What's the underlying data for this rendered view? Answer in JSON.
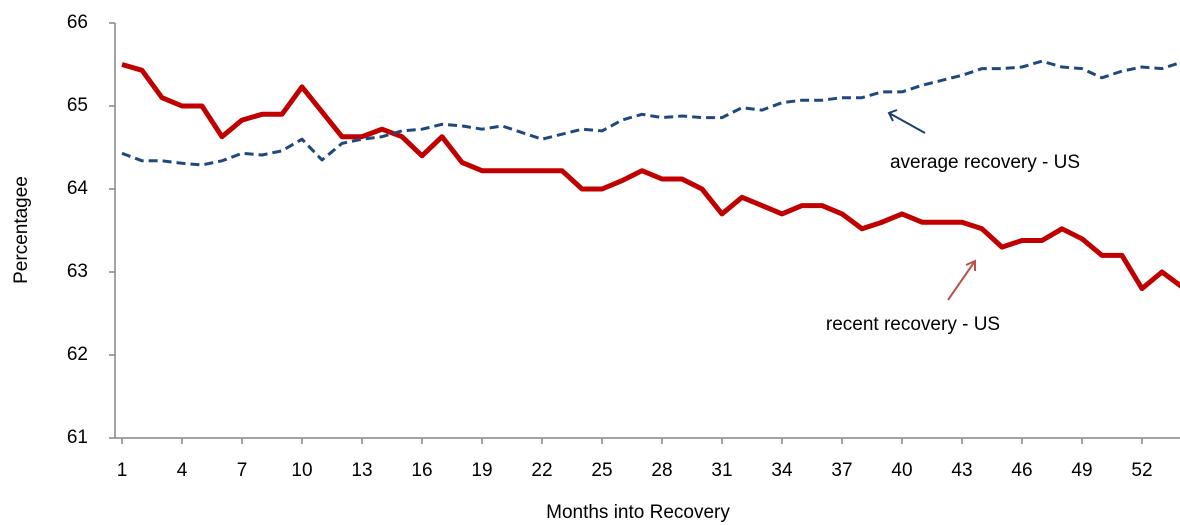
{
  "chart_data": {
    "type": "line",
    "x_label": "Months into Recovery",
    "y_label": "Percentagee",
    "x": [
      1,
      2,
      3,
      4,
      5,
      6,
      7,
      8,
      9,
      10,
      11,
      12,
      13,
      14,
      15,
      16,
      17,
      18,
      19,
      20,
      21,
      22,
      23,
      24,
      25,
      26,
      27,
      28,
      29,
      30,
      31,
      32,
      33,
      34,
      35,
      36,
      37,
      38,
      39,
      40,
      41,
      42,
      43,
      44,
      45,
      46,
      47,
      48,
      49,
      50,
      51,
      52,
      53,
      54
    ],
    "series": [
      {
        "name": "recent recovery - US",
        "color": "#c00000",
        "dash": false,
        "values": [
          65.5,
          65.43,
          65.1,
          65.0,
          65.0,
          64.63,
          64.83,
          64.9,
          64.9,
          65.23,
          64.93,
          64.63,
          64.63,
          64.72,
          64.63,
          64.4,
          64.63,
          64.32,
          64.22,
          64.22,
          64.22,
          64.22,
          64.22,
          64.0,
          64.0,
          64.1,
          64.22,
          64.12,
          64.12,
          64.0,
          63.7,
          63.9,
          63.8,
          63.7,
          63.8,
          63.8,
          63.7,
          63.52,
          63.6,
          63.7,
          63.6,
          63.6,
          63.6,
          63.52,
          63.3,
          63.38,
          63.38,
          63.52,
          63.4,
          63.2,
          63.2,
          62.8,
          63.0,
          62.82
        ]
      },
      {
        "name": "average recovery - US",
        "color": "#1f497d",
        "dash": true,
        "values": [
          64.43,
          64.34,
          64.34,
          64.31,
          64.29,
          64.34,
          64.43,
          64.41,
          64.46,
          64.6,
          64.35,
          64.55,
          64.6,
          64.63,
          64.7,
          64.72,
          64.78,
          64.76,
          64.72,
          64.76,
          64.68,
          64.6,
          64.66,
          64.72,
          64.7,
          64.83,
          64.9,
          64.86,
          64.88,
          64.86,
          64.86,
          64.98,
          64.95,
          65.04,
          65.07,
          65.07,
          65.1,
          65.1,
          65.17,
          65.17,
          65.25,
          65.31,
          65.37,
          65.45,
          65.45,
          65.47,
          65.54,
          65.47,
          65.45,
          65.34,
          65.42,
          65.47,
          65.45,
          65.53
        ]
      }
    ],
    "xlim": [
      0.65,
      53.9
    ],
    "xticks": [
      1,
      4,
      7,
      10,
      13,
      16,
      19,
      22,
      25,
      28,
      31,
      34,
      37,
      40,
      43,
      46,
      49,
      52
    ],
    "ylim": [
      61,
      66
    ],
    "yticks": [
      61,
      62,
      63,
      64,
      65,
      66
    ],
    "grid": false
  }
}
